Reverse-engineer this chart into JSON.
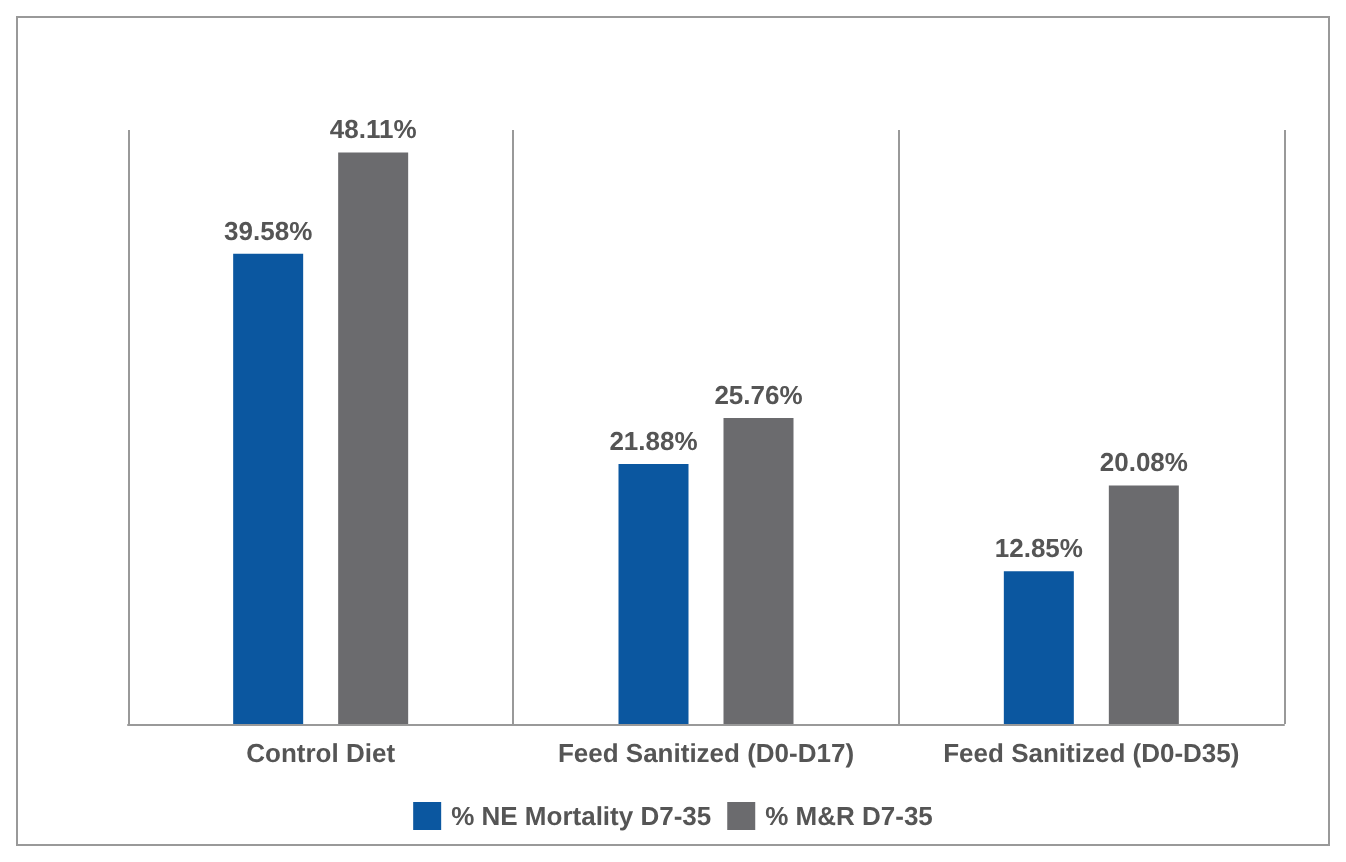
{
  "chart_data": {
    "type": "bar",
    "categories": [
      "Control Diet",
      "Feed Sanitized (D0-D17)",
      "Feed Sanitized (D0-D35)"
    ],
    "series": [
      {
        "name": "% NE Mortality D7-35",
        "color": "#0b57a0",
        "values": [
          39.58,
          21.88,
          12.85
        ],
        "value_labels": [
          "39.58%",
          "21.88%",
          "12.85%"
        ]
      },
      {
        "name": "% M&R D7-35",
        "color": "#6b6b6e",
        "values": [
          48.11,
          25.76,
          20.08
        ],
        "value_labels": [
          "48.11%",
          "25.76%",
          "20.08%"
        ]
      }
    ],
    "grid": "x",
    "legend": "bottom"
  }
}
